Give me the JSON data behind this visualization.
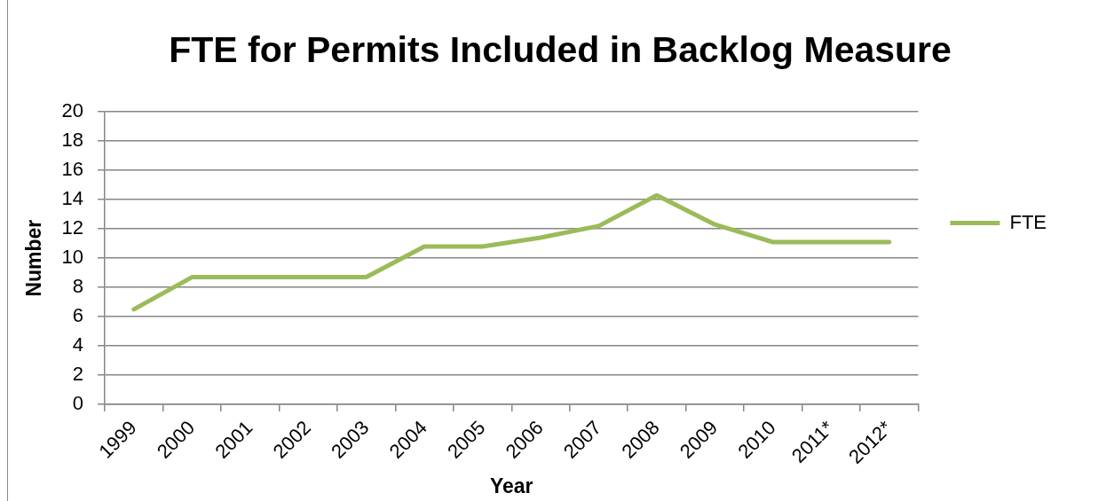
{
  "chart_data": {
    "type": "line",
    "title": "FTE for Permits Included in Backlog Measure",
    "xlabel": "Year",
    "ylabel": "Number",
    "categories": [
      "1999",
      "2000",
      "2001",
      "2002",
      "2003",
      "2004",
      "2005",
      "2006",
      "2007",
      "2008",
      "2009",
      "2010",
      "2011*",
      "2012*"
    ],
    "series": [
      {
        "name": "FTE",
        "color": "#9bbb59",
        "values": [
          6.5,
          8.7,
          8.7,
          8.7,
          8.7,
          10.8,
          10.8,
          11.4,
          12.2,
          14.3,
          12.3,
          11.1,
          11.1,
          11.1
        ]
      }
    ],
    "ylim": [
      0,
      20
    ],
    "yticks": [
      0,
      2,
      4,
      6,
      8,
      10,
      12,
      14,
      16,
      18,
      20
    ],
    "grid": "y",
    "legend": "right",
    "marker": "none",
    "line_style": "solid"
  }
}
